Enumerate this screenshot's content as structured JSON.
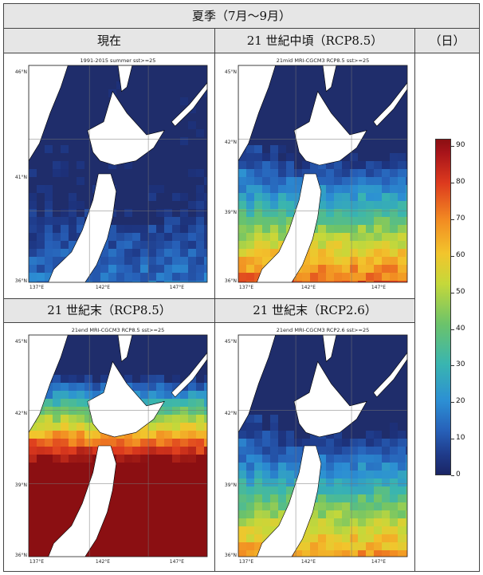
{
  "season_header": "夏季（7月～9月）",
  "columns": {
    "present": "現在",
    "mid": "21 世紀中頃（RCP8.5）",
    "unit": "（日）"
  },
  "row2": {
    "end85": "21 世紀末（RCP8.5）",
    "end26": "21 世紀末（RCP2.6）"
  },
  "panels": {
    "present": {
      "title": "1991-2015 summer sst>=25",
      "lat_ticks": [
        "46°N",
        "41°N",
        "36°N"
      ],
      "lon_ticks": [
        "137°E",
        "142°E",
        "147°E"
      ],
      "warm_level": 0.15
    },
    "mid": {
      "title": "21mid MRI-CGCM3 RCP8.5 sst>=25",
      "lat_ticks": [
        "45°N",
        "42°N",
        "39°N",
        "36°N"
      ],
      "lon_ticks": [
        "137°E",
        "142°E",
        "147°E"
      ],
      "warm_level": 0.45
    },
    "end85": {
      "title": "21end MRI-CGCM3 RCP8.5 sst>=25",
      "lat_ticks": [
        "45°N",
        "42°N",
        "39°N",
        "36°N"
      ],
      "lon_ticks": [
        "137°E",
        "142°E",
        "147°E"
      ],
      "warm_level": 0.85
    },
    "end26": {
      "title": "21end MRI-CGCM3 RCP2.6 sst>=25",
      "lat_ticks": [
        "45°N",
        "42°N",
        "39°N",
        "36°N"
      ],
      "lon_ticks": [
        "137°E",
        "142°E",
        "147°E"
      ],
      "warm_level": 0.42
    }
  },
  "colorbar": {
    "ticks": [
      "90",
      "80",
      "70",
      "60",
      "50",
      "40",
      "30",
      "20",
      "10",
      "0"
    ],
    "min": 0,
    "max": 92
  },
  "colors": {
    "ocean_low": "#1f2d6b",
    "land": "#ffffff",
    "high": "#8b0f12"
  }
}
